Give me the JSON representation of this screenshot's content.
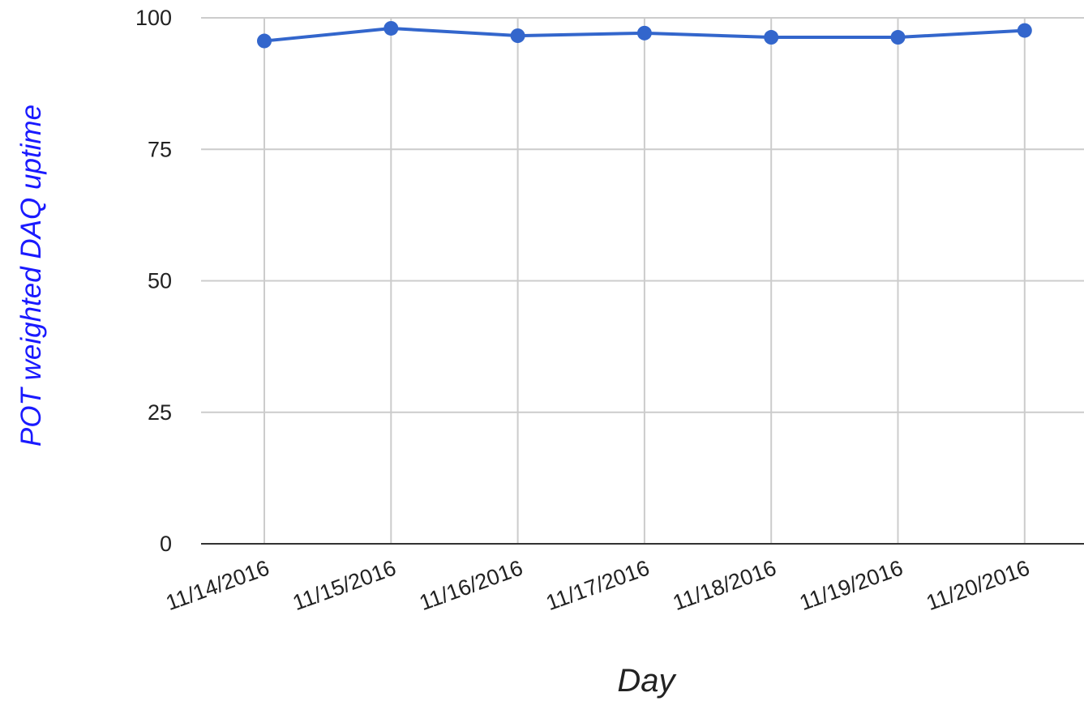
{
  "chart_data": {
    "type": "line",
    "title": "",
    "xlabel": "Day",
    "ylabel": "POT weighted DAQ uptime",
    "ylim": [
      0,
      100
    ],
    "yticks": [
      "0",
      "25",
      "50",
      "75",
      "100"
    ],
    "categories": [
      "11/14/2016",
      "11/15/2016",
      "11/16/2016",
      "11/17/2016",
      "11/18/2016",
      "11/19/2016",
      "11/20/2016"
    ],
    "series": [
      {
        "values": [
          95.6,
          98.0,
          96.6,
          97.1,
          96.3,
          96.3,
          97.6
        ]
      }
    ],
    "grid": true,
    "legend": "none",
    "colors": {
      "line": "#3366cc",
      "ylabel": "#1a1aff",
      "grid": "#cccccc",
      "baseline": "#333333",
      "text": "#222222"
    }
  }
}
